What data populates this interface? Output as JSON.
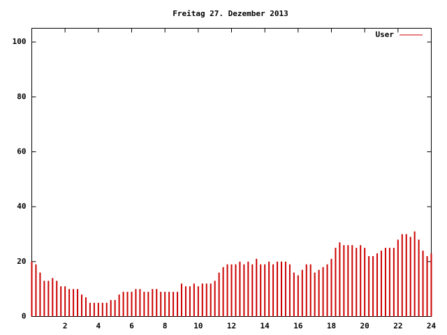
{
  "chart_data": {
    "type": "impulses",
    "title": "Freitag 27. Dezember 2013",
    "x": [
      0,
      0.25,
      0.5,
      0.75,
      1,
      1.25,
      1.5,
      1.75,
      2,
      2.25,
      2.5,
      2.75,
      3,
      3.25,
      3.5,
      3.75,
      4,
      4.25,
      4.5,
      4.75,
      5,
      5.25,
      5.5,
      5.75,
      6,
      6.25,
      6.5,
      6.75,
      7,
      7.25,
      7.5,
      7.75,
      8,
      8.25,
      8.5,
      8.75,
      9,
      9.25,
      9.5,
      9.75,
      10,
      10.25,
      10.5,
      10.75,
      11,
      11.25,
      11.5,
      11.75,
      12,
      12.25,
      12.5,
      12.75,
      13,
      13.25,
      13.5,
      13.75,
      14,
      14.25,
      14.5,
      14.75,
      15,
      15.25,
      15.5,
      15.75,
      16,
      16.25,
      16.5,
      16.75,
      17,
      17.25,
      17.5,
      17.75,
      18,
      18.25,
      18.5,
      18.75,
      19,
      19.25,
      19.5,
      19.75,
      20,
      20.25,
      20.5,
      20.75,
      21,
      21.25,
      21.5,
      21.75,
      22,
      22.25,
      22.5,
      22.75,
      23,
      23.25,
      23.5,
      23.75,
      24
    ],
    "series": [
      {
        "name": "User",
        "color": "#cc0000",
        "values": [
          20,
          19,
          16,
          13,
          13,
          14,
          13,
          11,
          11,
          10,
          10,
          10,
          8,
          7,
          5,
          5,
          5,
          5,
          5,
          6,
          6,
          8,
          9,
          9,
          9,
          10,
          10,
          9,
          9,
          10,
          10,
          9,
          9,
          9,
          9,
          9,
          12,
          11,
          11,
          12,
          11,
          12,
          12,
          12,
          13,
          16,
          18,
          19,
          19,
          19,
          20,
          19,
          20,
          19,
          21,
          19,
          19,
          20,
          19,
          20,
          20,
          20,
          19,
          16,
          15,
          17,
          19,
          19,
          16,
          17,
          18,
          19,
          21,
          25,
          27,
          26,
          26,
          26,
          25,
          26,
          25,
          22,
          22,
          23,
          24,
          25,
          25,
          25,
          28,
          30,
          30,
          29,
          31,
          28,
          24,
          22,
          23
        ]
      }
    ],
    "xlim": [
      0,
      24
    ],
    "xticks": [
      2,
      4,
      6,
      8,
      10,
      12,
      14,
      16,
      18,
      20,
      22,
      24
    ],
    "ylim": [
      0,
      105
    ],
    "yticks": [
      0,
      20,
      40,
      60,
      80,
      100
    ]
  }
}
